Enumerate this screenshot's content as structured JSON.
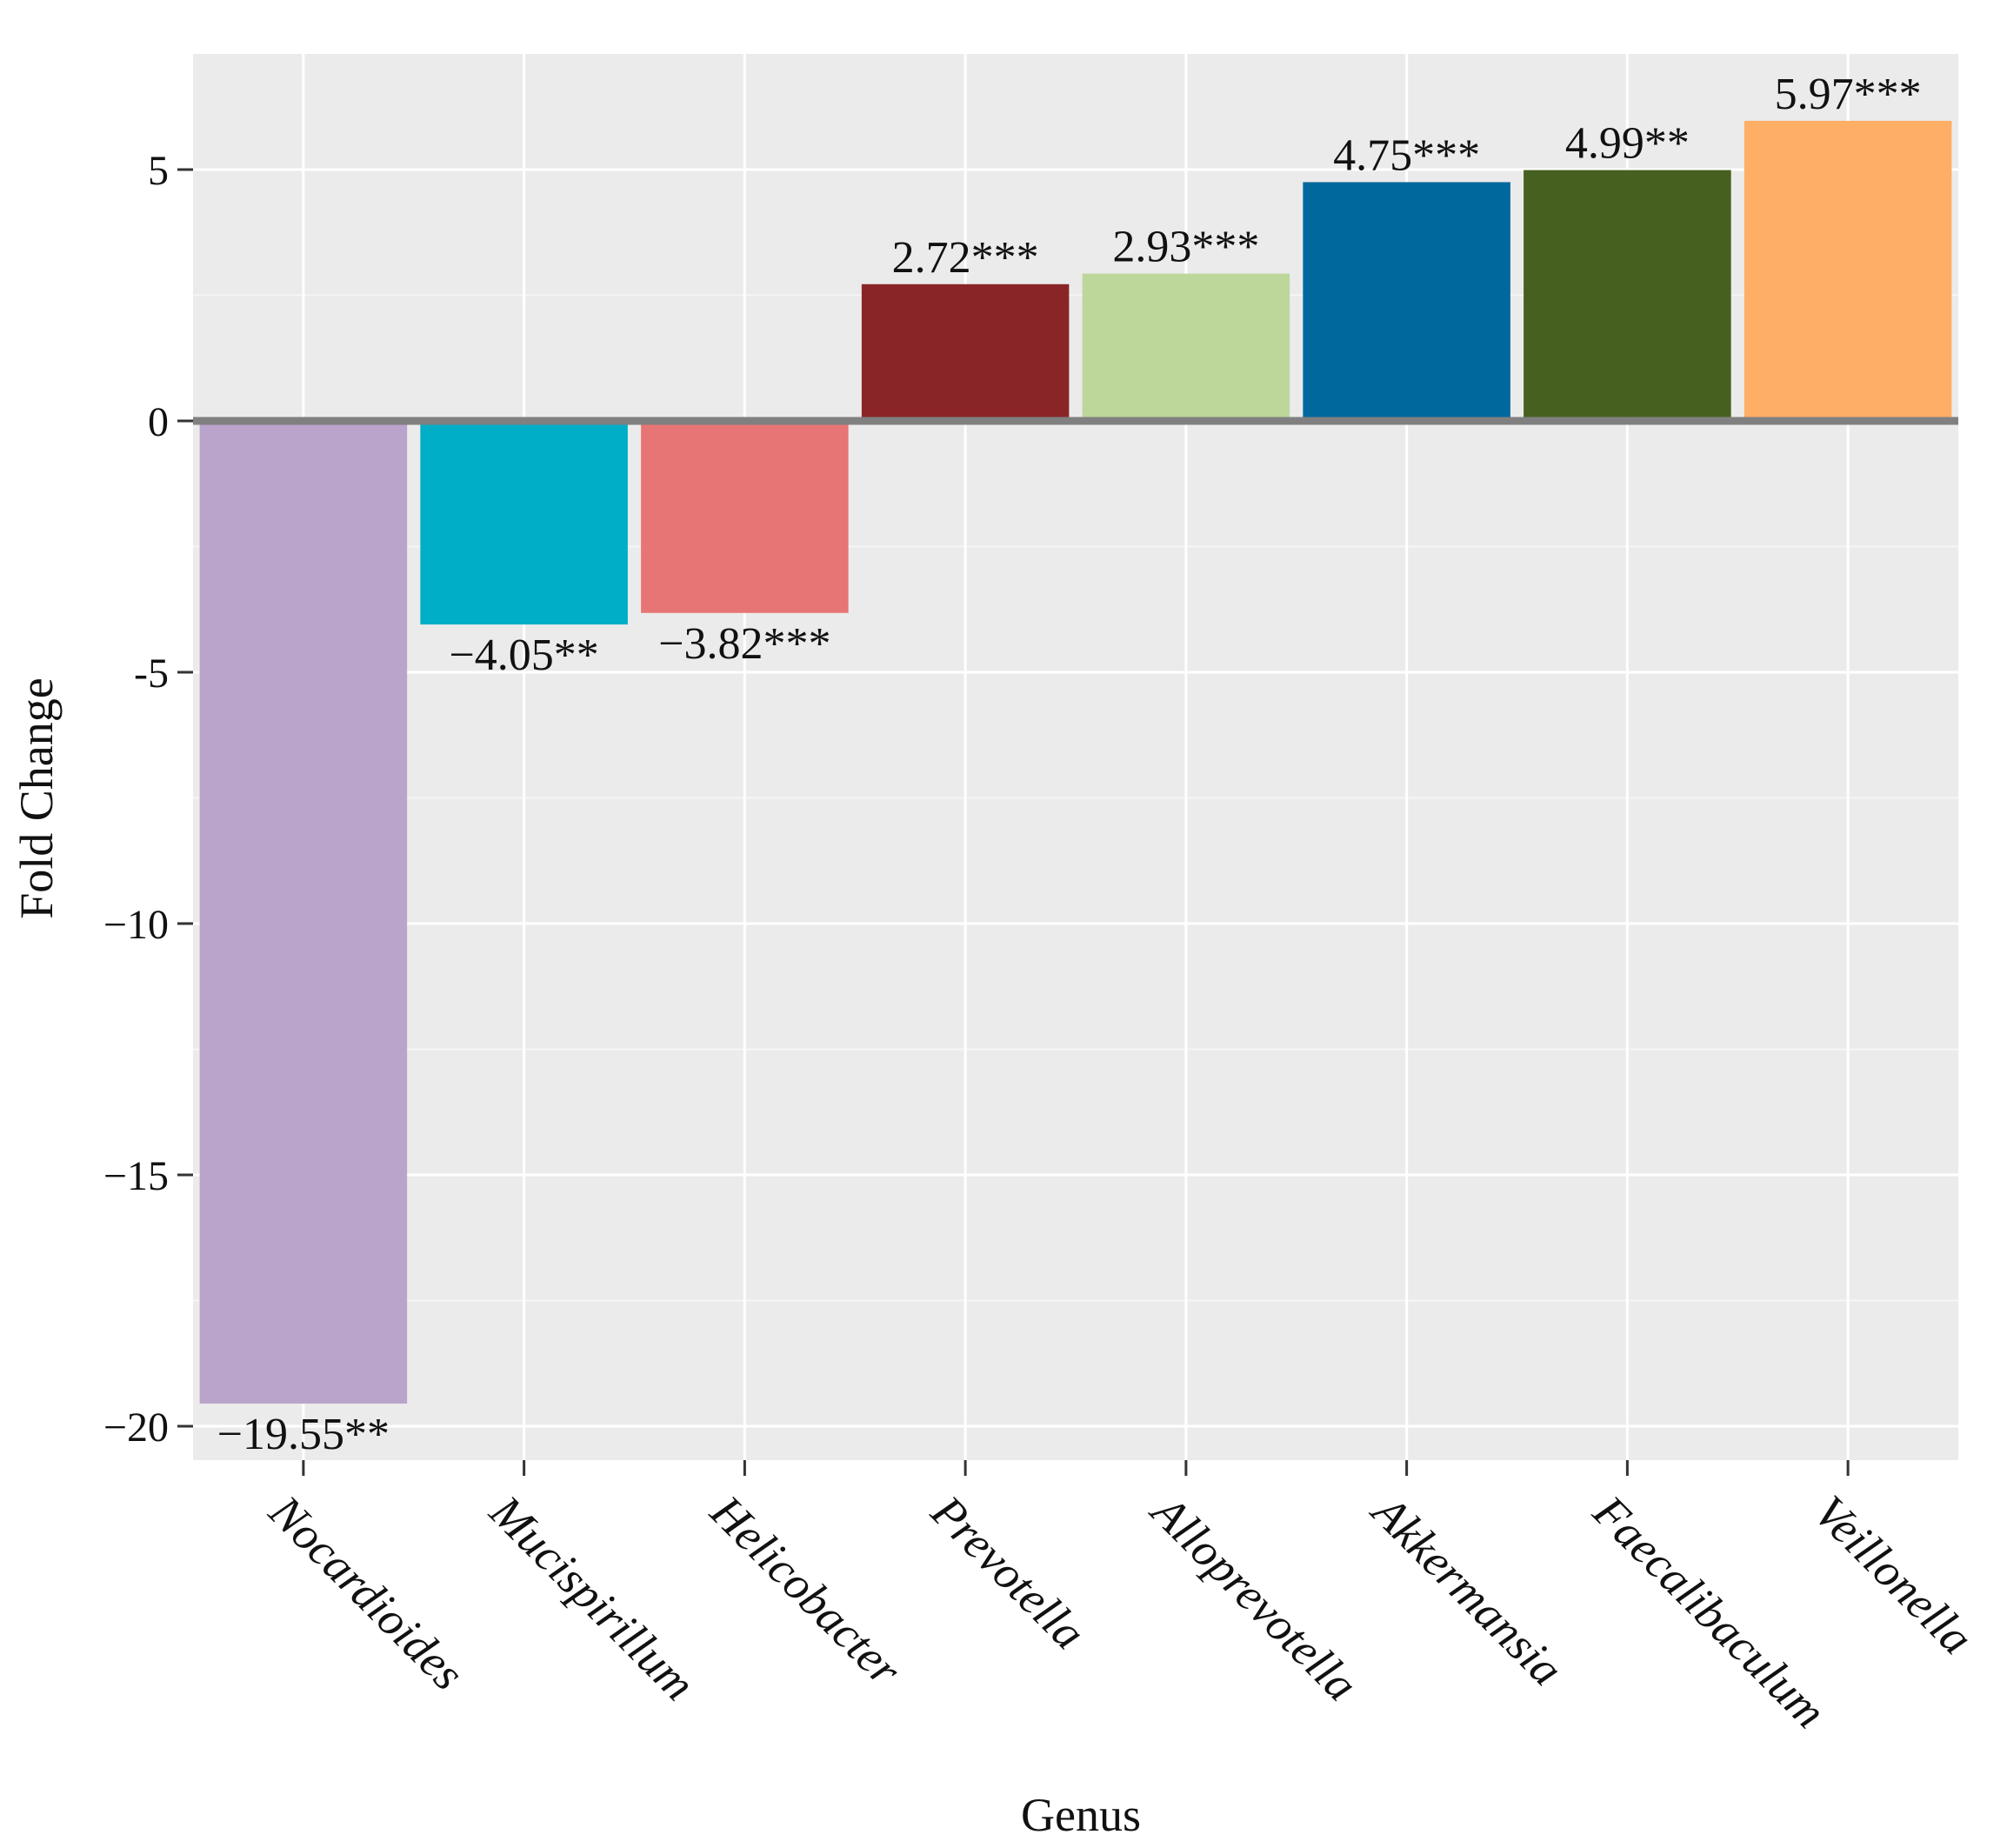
{
  "chart_data": {
    "type": "bar",
    "title": "",
    "xlabel": "Genus",
    "ylabel": "Fold Change",
    "ylim": [
      -20.8,
      7.5
    ],
    "yticks": [
      5,
      0,
      -5,
      -10,
      -15,
      -20
    ],
    "ytick_labels": [
      "5",
      "0",
      "-5",
      "−10",
      "−15",
      "−20"
    ],
    "grid": true,
    "categories": [
      "Nocardioides",
      "Mucispirillum",
      "Helicobacter",
      "Prevotella",
      "Alloprevotella",
      "Akkermansia",
      "Faecalibaculum",
      "Veillonella"
    ],
    "values": [
      -19.55,
      -4.05,
      -3.82,
      2.72,
      2.93,
      4.75,
      4.99,
      5.97
    ],
    "bar_labels": [
      "−19.55**",
      "−4.05**",
      "−3.82***",
      "2.72***",
      "2.93***",
      "4.75***",
      "4.99**",
      "5.97***"
    ],
    "colors": [
      "#BBA4CB",
      "#00AEC7",
      "#E87575",
      "#892527",
      "#BDD79B",
      "#00689D",
      "#46601F",
      "#FFAE66"
    ],
    "panel_color": "#EBEBEB",
    "zero_line_color": "#808080"
  }
}
